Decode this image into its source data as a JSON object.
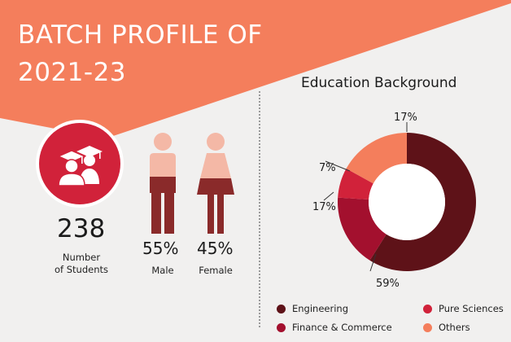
{
  "header": {
    "title_line1": "BATCH PROFILE OF",
    "title_line2": "2021-23"
  },
  "students": {
    "count": "238",
    "label_line1": "Number",
    "label_line2": "of Students"
  },
  "gender": {
    "male_percent": "55%",
    "male_label": "Male",
    "female_percent": "45%",
    "female_label": "Female"
  },
  "colors": {
    "banner": "#f47e5c",
    "engineering": "#5e1218",
    "finance_commerce": "#a3102e",
    "pure_sciences": "#d1223a",
    "others": "#f47e5c",
    "male_top": "#f4b8a6",
    "male_bottom": "#8a2a2a",
    "female_top": "#f4b8a6",
    "female_bottom": "#8a2a2a"
  },
  "chart_data": {
    "type": "pie",
    "title": "Education Background",
    "donut": true,
    "categories": [
      "Engineering",
      "Finance & Commerce",
      "Pure Sciences",
      "Others"
    ],
    "values": [
      59,
      17,
      7,
      17
    ],
    "value_labels": [
      "59%",
      "17%",
      "7%",
      "17%"
    ],
    "legend_position": "bottom",
    "legend": [
      "Engineering",
      "Pure Sciences",
      "Finance & Commerce",
      "Others"
    ]
  }
}
